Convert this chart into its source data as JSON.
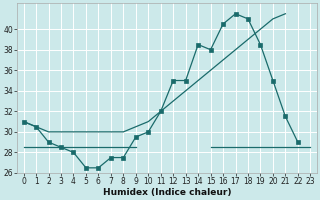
{
  "x": [
    0,
    1,
    2,
    3,
    4,
    5,
    6,
    7,
    8,
    9,
    10,
    11,
    12,
    13,
    14,
    15,
    16,
    17,
    18,
    19,
    20,
    21,
    22,
    23
  ],
  "line_straight": [
    31,
    30.5,
    30,
    30,
    30,
    30,
    30,
    30,
    30,
    30.5,
    31,
    32,
    33,
    34,
    35,
    36,
    37,
    38,
    39,
    40,
    41,
    41.5,
    null,
    null
  ],
  "line_zigzag": [
    31,
    30.5,
    29,
    28.5,
    28,
    26.5,
    26.5,
    27.5,
    27.5,
    29.5,
    30,
    32,
    35,
    35,
    38.5,
    38,
    40.5,
    41.5,
    41,
    38.5,
    35,
    31.5,
    29,
    null
  ],
  "line_flat_x1": [
    0,
    1,
    2,
    3,
    4,
    5,
    6,
    7,
    8,
    9
  ],
  "line_flat_y1": [
    28.5,
    28.5,
    28.5,
    28.5,
    28.5,
    28.5,
    28.5,
    28.5,
    28.5,
    28.5
  ],
  "line_flat_x2": [
    15,
    16,
    17,
    18,
    19,
    20,
    21,
    22,
    23
  ],
  "line_flat_y2": [
    28.5,
    28.5,
    28.5,
    28.5,
    28.5,
    28.5,
    28.5,
    28.5,
    28.5
  ],
  "bg_color": "#cce9ea",
  "line_color": "#1a6b6b",
  "grid_color": "#ffffff",
  "xlabel": "Humidex (Indice chaleur)",
  "ylim": [
    26,
    42
  ],
  "xlim": [
    -0.5,
    23.5
  ],
  "yticks": [
    26,
    28,
    30,
    32,
    34,
    36,
    38,
    40
  ],
  "xticks": [
    0,
    1,
    2,
    3,
    4,
    5,
    6,
    7,
    8,
    9,
    10,
    11,
    12,
    13,
    14,
    15,
    16,
    17,
    18,
    19,
    20,
    21,
    22,
    23
  ]
}
